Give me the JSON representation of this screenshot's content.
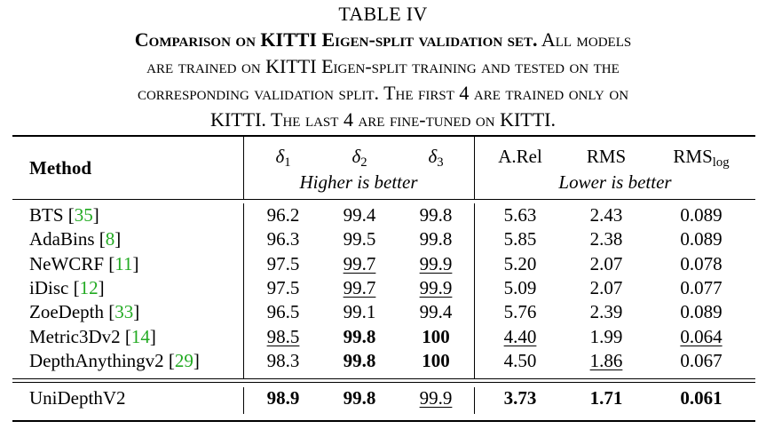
{
  "caption": {
    "label": "TABLE IV",
    "bold_part": "Comparison on KITTI Eigen-split validation set.",
    "lines": [
      "All models",
      "are trained on KITTI Eigen-split training and tested on the",
      "corresponding validation split. The first 4 are trained only on",
      "KITTI. The last 4 are fine-tuned on KITTI."
    ]
  },
  "header": {
    "method": "Method",
    "cols": [
      {
        "sym": "δ",
        "sub": "1"
      },
      {
        "sym": "δ",
        "sub": "2"
      },
      {
        "sym": "δ",
        "sub": "3"
      },
      {
        "sym": "A.Rel",
        "sub": ""
      },
      {
        "sym": "RMS",
        "sub": ""
      },
      {
        "sym": "RMS",
        "sub": "log"
      }
    ],
    "higher_label": "Higher is better",
    "lower_label": "Lower is better"
  },
  "rows": [
    {
      "name": "BTS",
      "cite": "35",
      "values": [
        "96.2",
        "99.4",
        "99.8",
        "5.63",
        "2.43",
        "0.089"
      ],
      "bold": [],
      "underline": []
    },
    {
      "name": "AdaBins",
      "cite": "8",
      "values": [
        "96.3",
        "99.5",
        "99.8",
        "5.85",
        "2.38",
        "0.089"
      ],
      "bold": [],
      "underline": []
    },
    {
      "name": "NeWCRF",
      "cite": "11",
      "values": [
        "97.5",
        "99.7",
        "99.9",
        "5.20",
        "2.07",
        "0.078"
      ],
      "bold": [],
      "underline": [
        1,
        2
      ]
    },
    {
      "name": "iDisc",
      "cite": "12",
      "values": [
        "97.5",
        "99.7",
        "99.9",
        "5.09",
        "2.07",
        "0.077"
      ],
      "bold": [],
      "underline": [
        1,
        2
      ]
    },
    {
      "name": "ZoeDepth",
      "cite": "33",
      "values": [
        "96.5",
        "99.1",
        "99.4",
        "5.76",
        "2.39",
        "0.089"
      ],
      "bold": [],
      "underline": []
    },
    {
      "name": "Metric3Dv2",
      "cite": "14",
      "values": [
        "98.5",
        "99.8",
        "100",
        "4.40",
        "1.99",
        "0.064"
      ],
      "bold": [
        1,
        2
      ],
      "underline": [
        0,
        3,
        5
      ]
    },
    {
      "name": "DepthAnythingv2",
      "cite": "29",
      "values": [
        "98.3",
        "99.8",
        "100",
        "4.50",
        "1.86",
        "0.067"
      ],
      "bold": [
        1,
        2
      ],
      "underline": [
        4
      ]
    }
  ],
  "final_row": {
    "name": "UniDepthV2",
    "cite": "",
    "values": [
      "98.9",
      "99.8",
      "99.9",
      "3.73",
      "1.71",
      "0.061"
    ],
    "bold": [
      0,
      1,
      3,
      4,
      5
    ],
    "underline": [
      2
    ]
  }
}
